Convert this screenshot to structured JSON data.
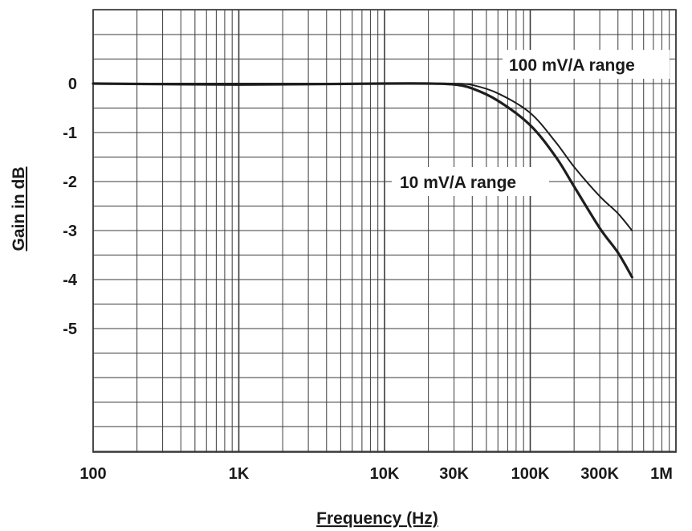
{
  "chart_data": {
    "type": "line",
    "title": "",
    "xlabel": "Frequency (Hz)",
    "ylabel": "Gain in dB",
    "x_scale": "log",
    "xlim": [
      100,
      1000000
    ],
    "ylim": [
      -8,
      1.5
    ],
    "grid": true,
    "x_ticks": [
      {
        "value": 100,
        "label": "100"
      },
      {
        "value": 1000,
        "label": "1K"
      },
      {
        "value": 10000,
        "label": "10K"
      },
      {
        "value": 30000,
        "label": "30K"
      },
      {
        "value": 100000,
        "label": "100K"
      },
      {
        "value": 300000,
        "label": "300K"
      },
      {
        "value": 1000000,
        "label": "1M"
      }
    ],
    "y_ticks": [
      {
        "value": 0,
        "label": "0"
      },
      {
        "value": -1,
        "label": "-1"
      },
      {
        "value": -2,
        "label": "-2"
      },
      {
        "value": -3,
        "label": "-3"
      },
      {
        "value": -4,
        "label": "-4"
      },
      {
        "value": -5,
        "label": "-5"
      }
    ],
    "series": [
      {
        "name": "100 mV/A range",
        "x": [
          100,
          1000,
          10000,
          20000,
          30000,
          40000,
          60000,
          100000,
          150000,
          200000,
          300000,
          400000,
          500000
        ],
        "y": [
          0,
          0,
          0,
          0,
          0,
          -0.03,
          -0.2,
          -0.6,
          -1.2,
          -1.7,
          -2.3,
          -2.65,
          -3.0
        ]
      },
      {
        "name": "10 mV/A range",
        "x": [
          100,
          1000,
          10000,
          20000,
          30000,
          40000,
          60000,
          100000,
          150000,
          200000,
          300000,
          400000,
          500000
        ],
        "y": [
          0,
          -0.02,
          0,
          0,
          -0.02,
          -0.1,
          -0.35,
          -0.85,
          -1.5,
          -2.1,
          -2.95,
          -3.45,
          -3.95
        ]
      }
    ],
    "annotations": [
      {
        "text": "100 mV/A range",
        "series": 0
      },
      {
        "text": "10 mV/A range",
        "series": 1
      }
    ]
  },
  "colors": {
    "grid": "#3a3a3a",
    "curve": "#1e1e1e",
    "text": "#1a1a1a"
  }
}
